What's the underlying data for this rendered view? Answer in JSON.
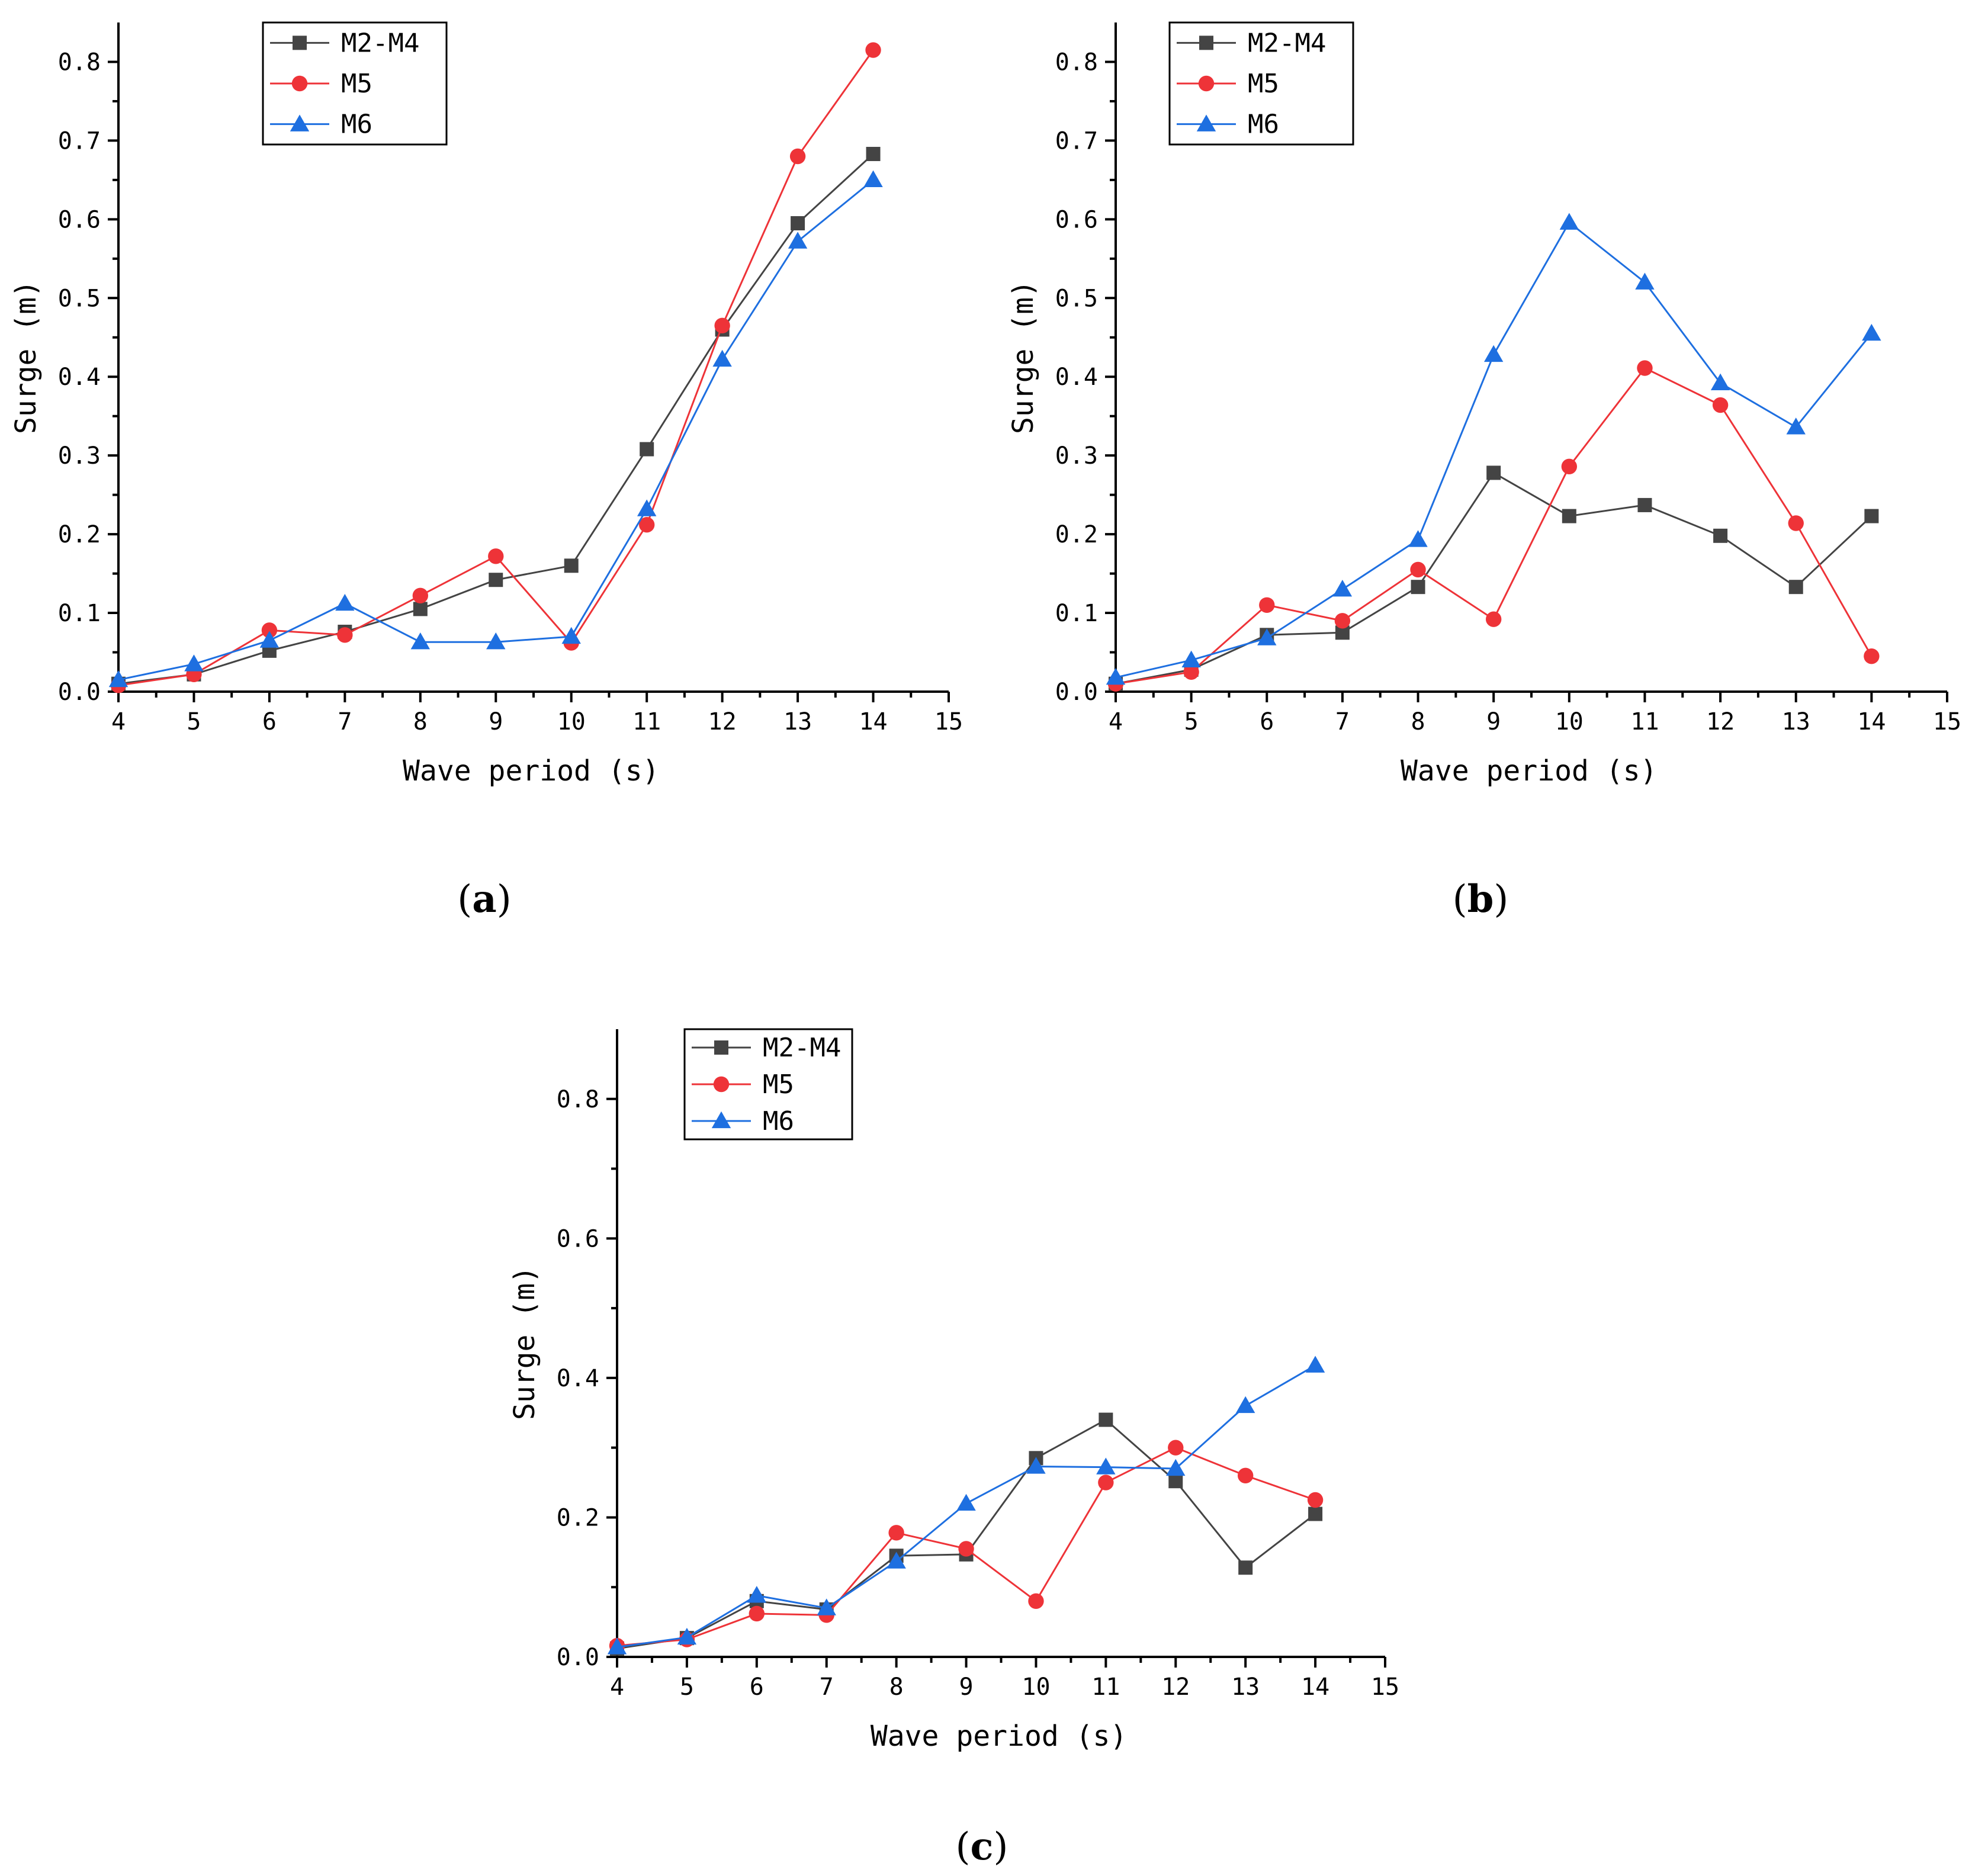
{
  "colors": {
    "M2-M4": "#444444",
    "M5": "#ee3338",
    "M6": "#1e6fe0"
  },
  "chart_data": [
    {
      "panel": "a",
      "caption_letter": "a",
      "type": "line",
      "xlabel": "Wave period (s)",
      "ylabel": "Surge (m)",
      "xlim": [
        4,
        15
      ],
      "ylim": [
        0,
        0.85
      ],
      "xticks": [
        4,
        5,
        6,
        7,
        8,
        9,
        10,
        11,
        12,
        13,
        14,
        15
      ],
      "yticks": [
        0.0,
        0.1,
        0.2,
        0.3,
        0.4,
        0.5,
        0.6,
        0.7,
        0.8
      ],
      "ytick_labels": [
        "0.0",
        "0.1",
        "0.2",
        "0.3",
        "0.4",
        "0.5",
        "0.6",
        "0.7",
        "0.8"
      ],
      "x": [
        4,
        5,
        6,
        7,
        8,
        9,
        10,
        11,
        12,
        13,
        14
      ],
      "series": [
        {
          "name": "M2-M4",
          "marker": "square",
          "values": [
            0.01,
            0.022,
            0.052,
            0.076,
            0.105,
            0.142,
            0.16,
            0.308,
            0.46,
            0.595,
            0.683
          ]
        },
        {
          "name": "M5",
          "marker": "circle",
          "values": [
            0.008,
            0.022,
            0.078,
            0.072,
            0.122,
            0.172,
            0.062,
            0.212,
            0.465,
            0.68,
            0.815
          ]
        },
        {
          "name": "M6",
          "marker": "triangle",
          "values": [
            0.015,
            0.035,
            0.065,
            0.112,
            0.063,
            0.063,
            0.07,
            0.232,
            0.422,
            0.572,
            0.65
          ]
        }
      ],
      "legend_position": "top-center"
    },
    {
      "panel": "b",
      "caption_letter": "b",
      "type": "line",
      "xlabel": "Wave period (s)",
      "ylabel": "Surge (m)",
      "xlim": [
        4,
        15
      ],
      "ylim": [
        0,
        0.85
      ],
      "xticks": [
        4,
        5,
        6,
        7,
        8,
        9,
        10,
        11,
        12,
        13,
        14,
        15
      ],
      "yticks": [
        0.0,
        0.1,
        0.2,
        0.3,
        0.4,
        0.5,
        0.6,
        0.7,
        0.8
      ],
      "ytick_labels": [
        "0.0",
        "0.1",
        "0.2",
        "0.3",
        "0.4",
        "0.5",
        "0.6",
        "0.7",
        "0.8"
      ],
      "x": [
        4,
        5,
        6,
        7,
        8,
        9,
        10,
        11,
        12,
        13,
        14
      ],
      "series": [
        {
          "name": "M2-M4",
          "marker": "square",
          "values": [
            0.01,
            0.028,
            0.072,
            0.075,
            0.133,
            0.278,
            0.223,
            0.237,
            0.198,
            0.133,
            0.223
          ]
        },
        {
          "name": "M5",
          "marker": "circle",
          "values": [
            0.01,
            0.025,
            0.11,
            0.09,
            0.155,
            0.092,
            0.286,
            0.411,
            0.364,
            0.214,
            0.045
          ]
        },
        {
          "name": "M6",
          "marker": "triangle",
          "values": [
            0.018,
            0.04,
            0.068,
            0.13,
            0.193,
            0.428,
            0.596,
            0.52,
            0.392,
            0.336,
            0.455
          ]
        }
      ],
      "legend_position": "top-left"
    },
    {
      "panel": "c",
      "caption_letter": "c",
      "type": "line",
      "xlabel": "Wave period (s)",
      "ylabel": "Surge (m)",
      "xlim": [
        4,
        15
      ],
      "ylim": [
        0,
        0.9
      ],
      "xticks": [
        4,
        5,
        6,
        7,
        8,
        9,
        10,
        11,
        12,
        13,
        14,
        15
      ],
      "yticks": [
        0.0,
        0.2,
        0.4,
        0.6,
        0.8
      ],
      "ytick_labels": [
        "0.0",
        "0.2",
        "0.4",
        "0.6",
        "0.8"
      ],
      "minor_yticks": [
        0.1,
        0.3,
        0.5,
        0.7
      ],
      "x": [
        4,
        5,
        6,
        7,
        8,
        9,
        10,
        11,
        12,
        13,
        14
      ],
      "series": [
        {
          "name": "M2-M4",
          "marker": "square",
          "values": [
            0.012,
            0.027,
            0.08,
            0.068,
            0.145,
            0.147,
            0.285,
            0.34,
            0.252,
            0.128,
            0.205
          ]
        },
        {
          "name": "M5",
          "marker": "circle",
          "values": [
            0.016,
            0.025,
            0.062,
            0.06,
            0.178,
            0.155,
            0.08,
            0.25,
            0.3,
            0.26,
            0.225
          ]
        },
        {
          "name": "M6",
          "marker": "triangle",
          "values": [
            0.014,
            0.028,
            0.088,
            0.07,
            0.137,
            0.22,
            0.273,
            0.272,
            0.27,
            0.36,
            0.418
          ]
        }
      ],
      "legend_position": "top-left"
    }
  ]
}
